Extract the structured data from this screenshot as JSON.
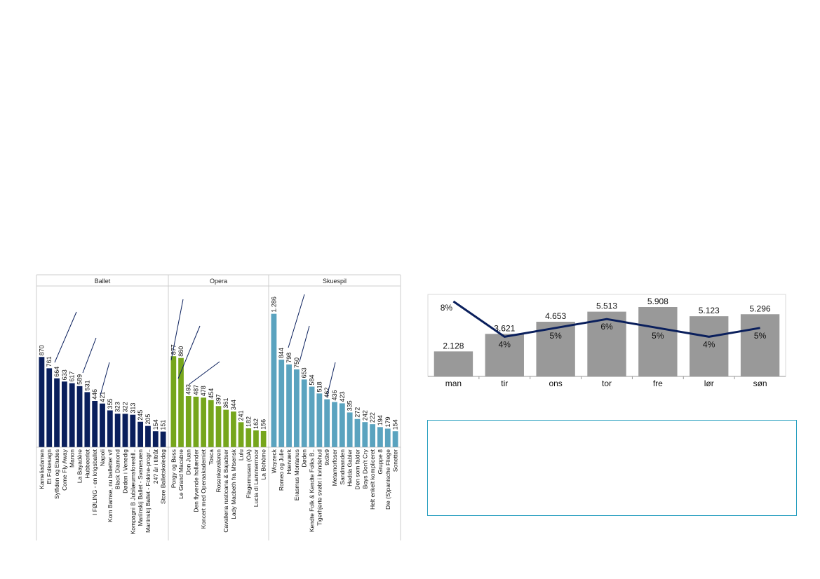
{
  "chart_data": [
    {
      "type": "bar",
      "panels": [
        {
          "name": "Ballet",
          "color": "#0a1f5c",
          "categories": [
            "Kameliadamen",
            "Et Folkesagn",
            "Sylfiden og Etudes",
            "Come Fly Away",
            "Manon",
            "La Bayadère",
            "Hubbeerlet",
            "I FØLING - en krigsballet",
            "Napoli",
            "Kom Bamse, nu balletter vi!",
            "Black Diamond",
            "Døden i Venedig",
            "Kompagni B Jubilæumsforestill..",
            "Mariinskij Ballet - Svanesøen",
            "Mariinskij Ballet - Fokine-progr..",
            "24? år i tiltråt",
            "Store Balletskoledag"
          ],
          "values": [
            870,
            761,
            664,
            633,
            617,
            589,
            531,
            446,
            421,
            355,
            323,
            322,
            313,
            245,
            205,
            154,
            151
          ],
          "value_labels": [
            "870",
            "761",
            "664",
            "633",
            "617",
            "589",
            "531",
            "446",
            "421",
            "355",
            "323",
            "322",
            "313",
            "245",
            "205",
            "154",
            "151"
          ]
        },
        {
          "name": "Opera",
          "color": "#76a61c",
          "categories": [
            "Porgy og Bess",
            "Le Grand Macabre",
            "Don Juan",
            "Den flyvende hollænder",
            "Koncert med Operaakademiet",
            "Tosca",
            "Rosenkavaleren",
            "Cavalleria rusticana & Bajadser",
            "Lady Macbeth fra Mtsensk",
            "Lulu",
            "Flagermusen (OA)",
            "Lucia di Lammermoor",
            "La Bohème"
          ],
          "values": [
            877,
            860,
            493,
            487,
            478,
            454,
            397,
            361,
            344,
            241,
            182,
            162,
            156
          ],
          "value_labels": [
            "877",
            "860",
            "493",
            "487",
            "478",
            "454",
            "397",
            "361",
            "344",
            "241",
            "182",
            "162",
            "156"
          ]
        },
        {
          "name": "Skuespil",
          "color": "#5aa3bf",
          "categories": [
            "Woyzeck",
            "Romeo og Julie",
            "Hærværk",
            "Erasmus Montanus",
            "Døden",
            "Kendte Folk & Kendte Folks B..",
            "Tigerhjerte svøbt i kvindehud",
            "9x9x9",
            "Metamorfoser",
            "Sandmanden",
            "Hedda Gabler",
            "Den som falder",
            "Boys Don't Cry",
            "Helt enkelt kompliceret",
            "Gruppe 8",
            "Die (S)panische Fliege",
            "Sonetter"
          ],
          "values": [
            1286,
            844,
            798,
            750,
            653,
            584,
            518,
            462,
            436,
            423,
            335,
            272,
            242,
            222,
            194,
            179,
            154
          ],
          "value_labels": [
            "1.286",
            "844",
            "798",
            "750",
            "653",
            "584",
            "518",
            "462",
            "436",
            "423",
            "335",
            "272",
            "242",
            "222",
            "194",
            "179",
            "154"
          ]
        }
      ]
    },
    {
      "type": "bar",
      "categories": [
        "man",
        "tir",
        "ons",
        "tor",
        "fre",
        "lør",
        "søn"
      ],
      "series": [
        {
          "values": [
            2128,
            3621,
            4653,
            5513,
            5908,
            5123,
            5296
          ],
          "labels": [
            "2.128",
            "3.621",
            "4.653",
            "5.513",
            "5.908",
            "5.123",
            "5.296"
          ],
          "color": "#999999"
        },
        {
          "type": "line",
          "values": [
            8,
            4,
            5,
            6,
            5,
            4,
            5
          ],
          "labels": [
            "8%",
            "4%",
            "5%",
            "6%",
            "5%",
            "4%",
            "5%"
          ],
          "color": "#0a1f5c"
        }
      ]
    }
  ]
}
